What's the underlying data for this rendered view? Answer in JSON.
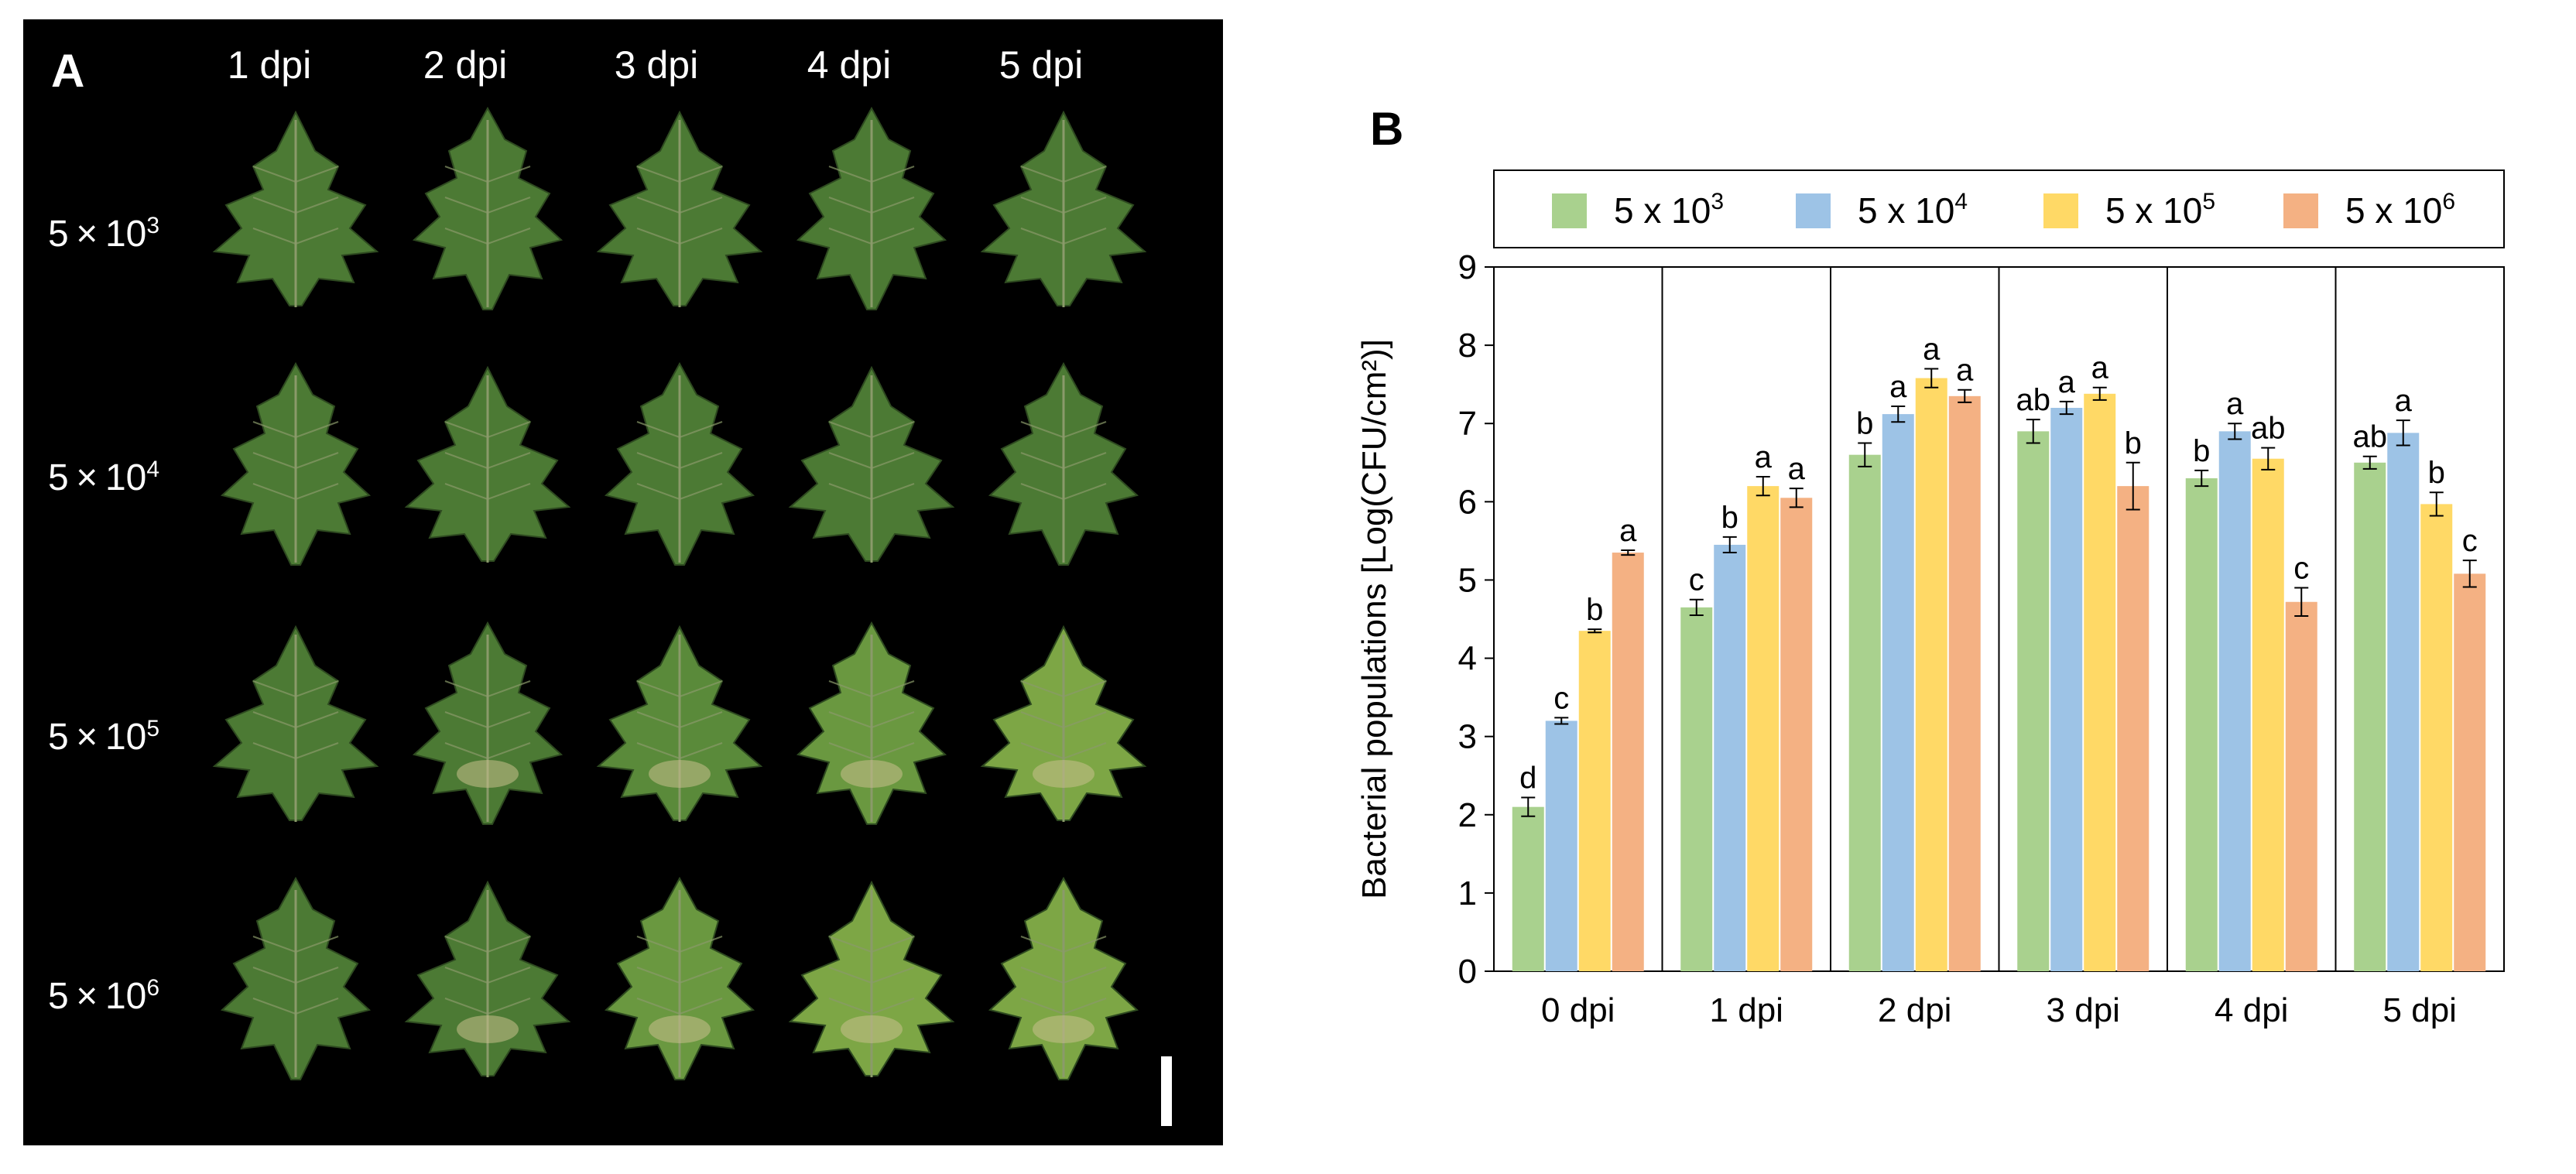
{
  "panel_a": {
    "letter": "A",
    "columns": [
      "1 dpi",
      "2 dpi",
      "3 dpi",
      "4 dpi",
      "5 dpi"
    ],
    "rows": [
      {
        "base": "5 × 10",
        "exp": "3"
      },
      {
        "base": "5 × 10",
        "exp": "4"
      },
      {
        "base": "5 × 10",
        "exp": "5"
      },
      {
        "base": "5 × 10",
        "exp": "6"
      }
    ],
    "leaf_color": "#4c7a34",
    "leaf_vein_color": "#8a9a6a"
  },
  "chart_data": {
    "panel_letter": "B",
    "type": "bar",
    "categories": [
      "0 dpi",
      "1 dpi",
      "2 dpi",
      "3 dpi",
      "4 dpi",
      "5 dpi"
    ],
    "ylabel": "Bacterial populations [Log(CFU/cm²)]",
    "ylim": [
      0,
      9
    ],
    "yticks": [
      0,
      1,
      2,
      3,
      4,
      5,
      6,
      7,
      8,
      9
    ],
    "grid": false,
    "legend_position": "top",
    "series": [
      {
        "name": "5 x 10",
        "exp": "3",
        "color": "#a9d18e",
        "values": [
          2.1,
          4.65,
          6.6,
          6.9,
          6.3,
          6.5
        ],
        "errors": [
          0.12,
          0.1,
          0.15,
          0.15,
          0.1,
          0.08
        ],
        "letters": [
          "d",
          "c",
          "b",
          "ab",
          "b",
          "ab"
        ]
      },
      {
        "name": "5 x 10",
        "exp": "4",
        "color": "#9dc3e6",
        "values": [
          3.2,
          5.45,
          7.12,
          7.2,
          6.9,
          6.88
        ],
        "errors": [
          0.04,
          0.1,
          0.1,
          0.08,
          0.1,
          0.16
        ],
        "letters": [
          "c",
          "b",
          "a",
          "a",
          "a",
          "a"
        ]
      },
      {
        "name": "5 x 10",
        "exp": "5",
        "color": "#ffd966",
        "values": [
          4.35,
          6.2,
          7.58,
          7.38,
          6.55,
          5.97
        ],
        "errors": [
          0.02,
          0.12,
          0.12,
          0.08,
          0.14,
          0.15
        ],
        "letters": [
          "b",
          "a",
          "a",
          "a",
          "ab",
          "b"
        ]
      },
      {
        "name": "5 x 10",
        "exp": "6",
        "color": "#f4b183",
        "values": [
          5.35,
          6.05,
          7.35,
          6.2,
          4.72,
          5.08
        ],
        "errors": [
          0.03,
          0.12,
          0.08,
          0.3,
          0.18,
          0.17
        ],
        "letters": [
          "a",
          "a",
          "a",
          "b",
          "c",
          "c"
        ]
      }
    ]
  }
}
